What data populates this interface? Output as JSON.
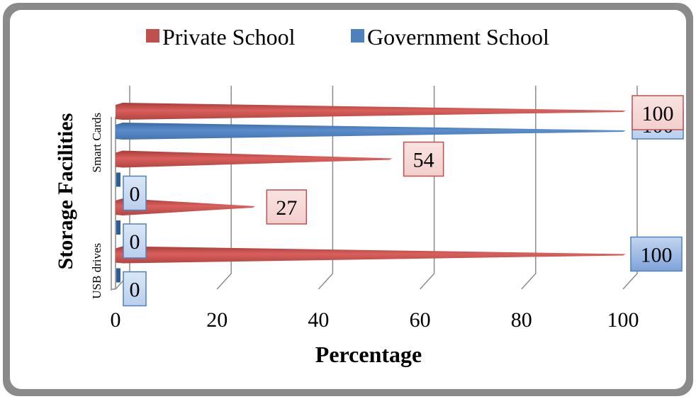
{
  "chart_data": {
    "type": "bar",
    "orientation": "horizontal",
    "style": "3d-cone",
    "xlabel": "Percentage",
    "ylabel": "Storage Facilities",
    "xlim": [
      0,
      100
    ],
    "xticks": [
      0,
      20,
      40,
      60,
      80,
      100
    ],
    "categories": [
      "USB drives",
      "",
      "Smart Cards",
      ""
    ],
    "category_label_order": "bottom-to-top",
    "grid": true,
    "legend_position": "top",
    "series": [
      {
        "name": "Private School",
        "color": "#c0504d",
        "values": [
          100,
          27,
          54,
          100
        ]
      },
      {
        "name": "Government School",
        "color": "#4f81bd",
        "values": [
          0,
          0,
          0,
          100
        ]
      }
    ]
  }
}
